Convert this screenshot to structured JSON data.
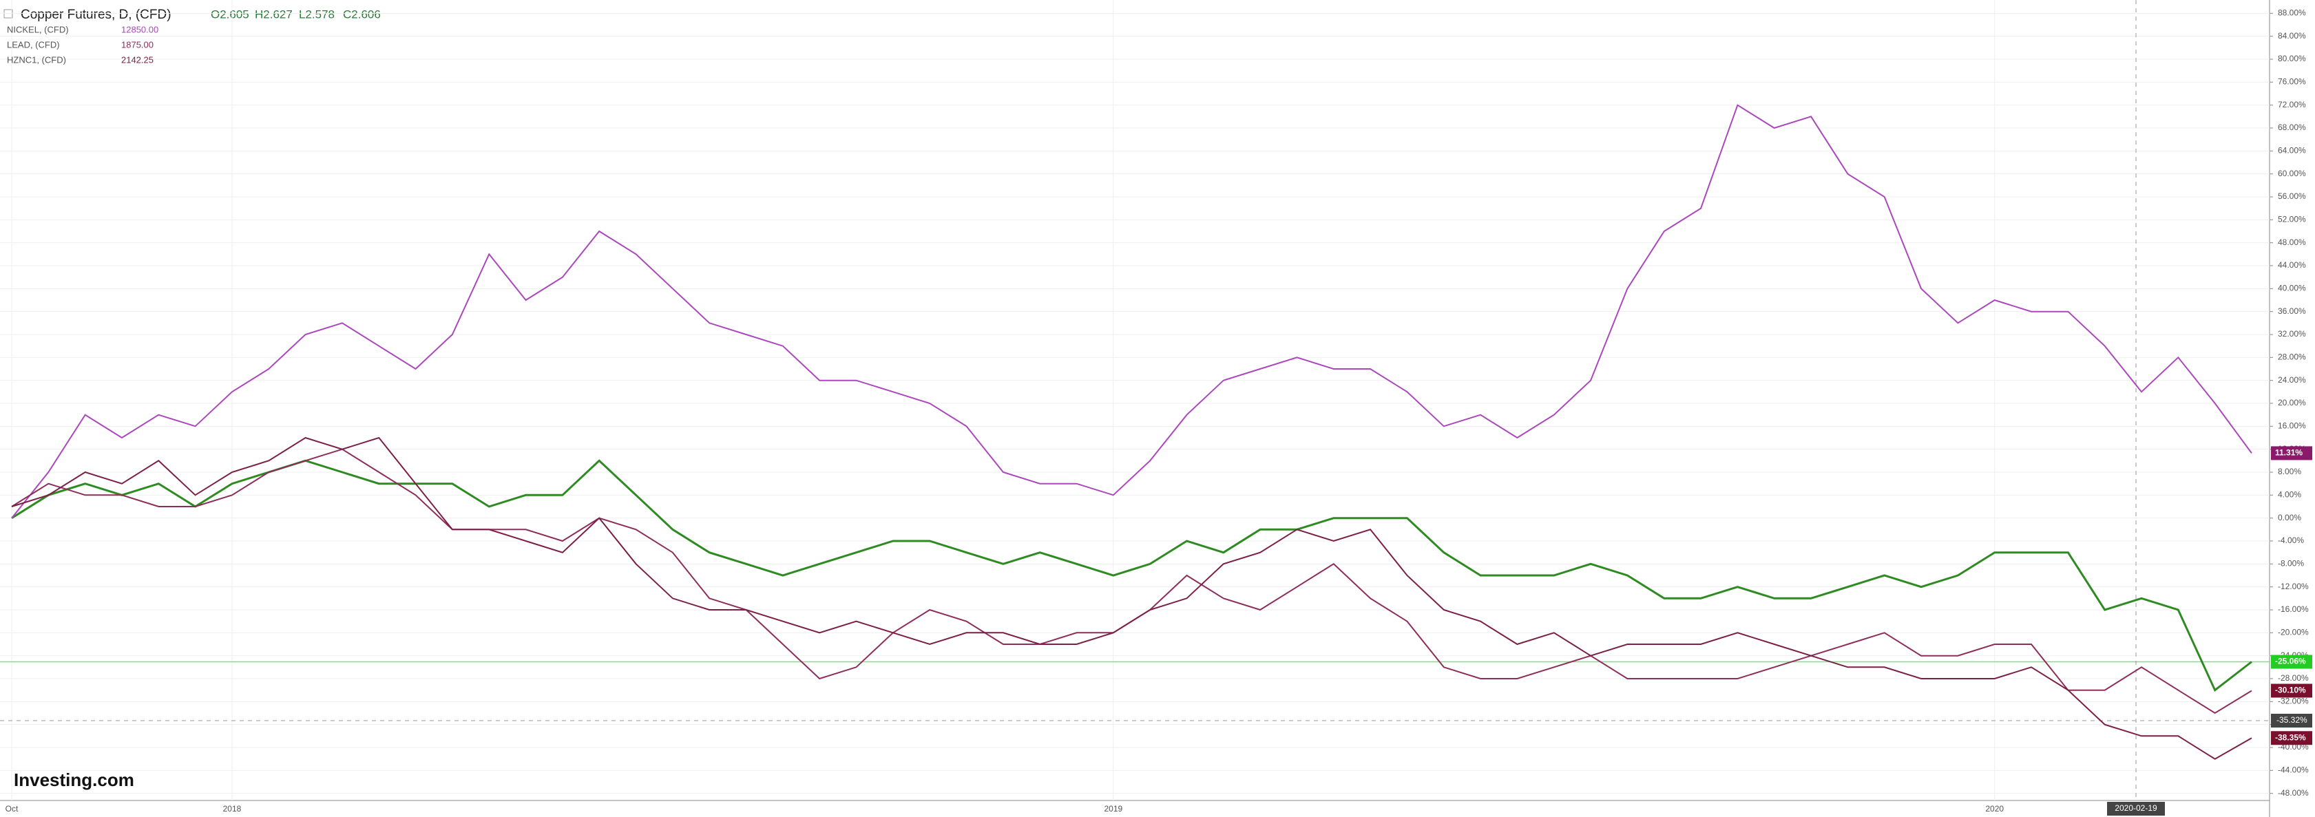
{
  "chart_data": {
    "type": "line",
    "header": {
      "ohlc": [
        "O2.605",
        "H2.627",
        "L2.578",
        "C2.606"
      ]
    },
    "logo": "Investing.com",
    "categories": [
      "Oct",
      null,
      null,
      null,
      null,
      null,
      "2018",
      null,
      null,
      null,
      null,
      null,
      null,
      null,
      null,
      null,
      null,
      null,
      null,
      null,
      null,
      null,
      null,
      null,
      null,
      null,
      null,
      null,
      null,
      null,
      "2019",
      null,
      null,
      null,
      null,
      null,
      null,
      null,
      null,
      null,
      null,
      null,
      null,
      null,
      null,
      null,
      null,
      null,
      null,
      null,
      null,
      null,
      null,
      null,
      "2020",
      null,
      null,
      null,
      null,
      null,
      null,
      null
    ],
    "series": [
      {
        "name": "Copper Futures, D, (CFD)",
        "color": "#2e8b22",
        "label_color": "#22cc22",
        "last_label": "-25.06%",
        "values": [
          0,
          4,
          6,
          4,
          6,
          2,
          6,
          8,
          10,
          8,
          6,
          6,
          6,
          2,
          4,
          4,
          10,
          4,
          -2,
          -6,
          -8,
          -10,
          -8,
          -6,
          -4,
          -4,
          -6,
          -8,
          -6,
          -8,
          -10,
          -8,
          -4,
          -6,
          -2,
          -2,
          0,
          0,
          0,
          -6,
          -10,
          -10,
          -10,
          -8,
          -10,
          -14,
          -14,
          -12,
          -14,
          -14,
          -12,
          -10,
          -12,
          -10,
          -6,
          -6,
          -6,
          -16,
          -14,
          -16,
          -30,
          -25.06
        ]
      },
      {
        "name": "NICKEL, (CFD)",
        "price": "12850.00",
        "color": "#ab47bc",
        "label_color": "#8b1a6b",
        "last_label": "11.31%",
        "values": [
          0,
          8,
          18,
          14,
          18,
          16,
          22,
          26,
          32,
          34,
          30,
          26,
          32,
          46,
          38,
          42,
          50,
          46,
          40,
          34,
          32,
          30,
          24,
          24,
          22,
          20,
          16,
          8,
          6,
          6,
          4,
          10,
          18,
          24,
          26,
          28,
          26,
          26,
          22,
          16,
          18,
          14,
          18,
          24,
          40,
          50,
          54,
          72,
          68,
          70,
          60,
          56,
          40,
          34,
          38,
          36,
          36,
          30,
          22,
          28,
          20,
          11.31
        ]
      },
      {
        "name": "LEAD, (CFD)",
        "price": "1875.00",
        "color": "#8e2c5a",
        "label_color": "#7a0f2e",
        "last_label": "-30.10%",
        "values": [
          2,
          6,
          4,
          4,
          2,
          2,
          4,
          8,
          10,
          12,
          8,
          4,
          -2,
          -2,
          -2,
          -4,
          0,
          -2,
          -6,
          -14,
          -16,
          -22,
          -28,
          -26,
          -20,
          -16,
          -18,
          -22,
          -22,
          -20,
          -20,
          -16,
          -10,
          -14,
          -16,
          -12,
          -8,
          -14,
          -18,
          -26,
          -28,
          -28,
          -26,
          -24,
          -28,
          -28,
          -28,
          -28,
          -26,
          -24,
          -22,
          -20,
          -24,
          -24,
          -22,
          -22,
          -30,
          -30,
          -26,
          -30,
          -34,
          -30.1
        ]
      },
      {
        "name": "HZNC1, (CFD)",
        "price": "2142.25",
        "color": "#7b1f46",
        "label_color": "#7a0f2e",
        "last_label": "-38.35%",
        "values": [
          2,
          4,
          8,
          6,
          10,
          4,
          8,
          10,
          14,
          12,
          14,
          6,
          -2,
          -2,
          -4,
          -6,
          0,
          -8,
          -14,
          -16,
          -16,
          -18,
          -20,
          -18,
          -20,
          -22,
          -20,
          -20,
          -22,
          -22,
          -20,
          -16,
          -14,
          -8,
          -6,
          -2,
          -4,
          -2,
          -10,
          -16,
          -18,
          -22,
          -20,
          -24,
          -22,
          -22,
          -22,
          -20,
          -22,
          -24,
          -26,
          -26,
          -28,
          -28,
          -28,
          -26,
          -30,
          -36,
          -38,
          -38,
          -42,
          -38.35
        ]
      }
    ],
    "crosshair": {
      "x_label": "2020-02-19",
      "y": -35.32,
      "y_label": "-35.32%"
    },
    "ylim": [
      -49,
      89
    ],
    "yticks": [
      {
        "value": 88,
        "label": "88.00%"
      },
      {
        "value": 84,
        "label": "84.00%"
      },
      {
        "value": 80,
        "label": "80.00%"
      },
      {
        "value": 76,
        "label": "76.00%"
      },
      {
        "value": 72,
        "label": "72.00%"
      },
      {
        "value": 68,
        "label": "68.00%"
      },
      {
        "value": 64,
        "label": "64.00%"
      },
      {
        "value": 60,
        "label": "60.00%"
      },
      {
        "value": 56,
        "label": "56.00%"
      },
      {
        "value": 52,
        "label": "52.00%"
      },
      {
        "value": 48,
        "label": "48.00%"
      },
      {
        "value": 44,
        "label": "44.00%"
      },
      {
        "value": 40,
        "label": "40.00%"
      },
      {
        "value": 36,
        "label": "36.00%"
      },
      {
        "value": 32,
        "label": "32.00%"
      },
      {
        "value": 28,
        "label": "28.00%"
      },
      {
        "value": 24,
        "label": "24.00%"
      },
      {
        "value": 20,
        "label": "20.00%"
      },
      {
        "value": 16,
        "label": "16.00%"
      },
      {
        "value": 12,
        "label": "12.00%"
      },
      {
        "value": 8,
        "label": "8.00%"
      },
      {
        "value": 4,
        "label": "4.00%"
      },
      {
        "value": 0,
        "label": "0.00%"
      },
      {
        "value": -4,
        "label": "-4.00%"
      },
      {
        "value": -8,
        "label": "-8.00%"
      },
      {
        "value": -12,
        "label": "-12.00%"
      },
      {
        "value": -16,
        "label": "-16.00%"
      },
      {
        "value": -20,
        "label": "-20.00%"
      },
      {
        "value": -24,
        "label": "-24.00%"
      },
      {
        "value": -28,
        "label": "-28.00%"
      },
      {
        "value": -32,
        "label": "-32.00%"
      },
      {
        "value": -36,
        "label": "-36.00%"
      },
      {
        "value": -40,
        "label": "-40.00%"
      },
      {
        "value": -44,
        "label": "-44.00%"
      },
      {
        "value": -48,
        "label": "-48.00%"
      }
    ],
    "grid": true
  }
}
